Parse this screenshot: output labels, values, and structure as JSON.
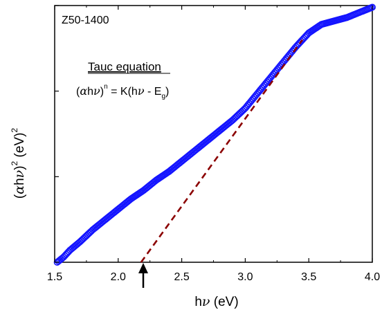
{
  "chart_data": {
    "type": "scatter",
    "sample_label": "Z50-1400",
    "xlabel": "hν (eV)",
    "ylabel": "(αhν)² (eV)²",
    "xlim": [
      1.5,
      4.0
    ],
    "ylim": [
      0,
      1.5
    ],
    "x_ticks": [
      "1.5",
      "2.0",
      "2.5",
      "3.0",
      "3.5",
      "4.0"
    ],
    "y_tick_labels_shown": false,
    "grid": false,
    "annotation": {
      "title": "Tauc equation",
      "equation": "(αhν)ⁿ = K(hν - E_g)"
    },
    "band_gap_arrow_x": 2.18,
    "series": [
      {
        "marker": "open-circle",
        "color": "#1414ff",
        "points": [
          [
            1.52,
            0.0
          ],
          [
            1.57,
            0.03
          ],
          [
            1.62,
            0.07
          ],
          [
            1.7,
            0.12
          ],
          [
            1.8,
            0.19
          ],
          [
            1.9,
            0.25
          ],
          [
            2.0,
            0.31
          ],
          [
            2.1,
            0.37
          ],
          [
            2.2,
            0.42
          ],
          [
            2.3,
            0.48
          ],
          [
            2.4,
            0.53
          ],
          [
            2.5,
            0.59
          ],
          [
            2.6,
            0.65
          ],
          [
            2.7,
            0.71
          ],
          [
            2.8,
            0.77
          ],
          [
            2.9,
            0.83
          ],
          [
            3.0,
            0.9
          ],
          [
            3.1,
            0.99
          ],
          [
            3.2,
            1.08
          ],
          [
            3.3,
            1.17
          ],
          [
            3.4,
            1.26
          ],
          [
            3.45,
            1.3
          ],
          [
            3.5,
            1.34
          ],
          [
            3.6,
            1.39
          ],
          [
            3.7,
            1.41
          ],
          [
            3.8,
            1.43
          ],
          [
            3.9,
            1.46
          ],
          [
            4.0,
            1.49
          ]
        ]
      },
      {
        "style": "dashed-fit",
        "color": "#8b0000",
        "points": [
          [
            2.18,
            0.0
          ],
          [
            3.45,
            1.3
          ]
        ]
      }
    ]
  }
}
